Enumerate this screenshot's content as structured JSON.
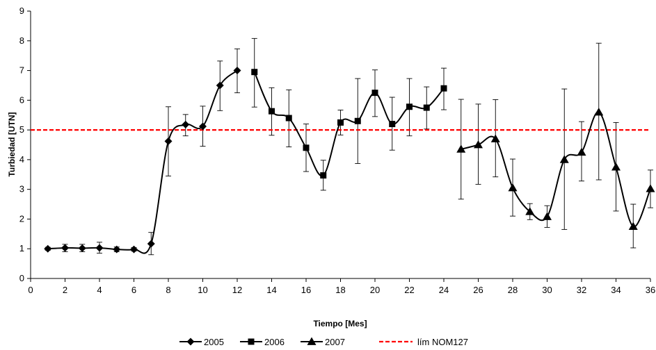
{
  "chart_data": {
    "type": "line",
    "xlabel": "Tiempo [Mes]",
    "ylabel": "Turbiedad [UTN]",
    "xlim": [
      0,
      36
    ],
    "ylim": [
      0,
      9
    ],
    "x_ticks": [
      0,
      2,
      4,
      6,
      8,
      10,
      12,
      14,
      16,
      18,
      20,
      22,
      24,
      26,
      28,
      30,
      32,
      34,
      36
    ],
    "y_ticks": [
      0,
      1,
      2,
      3,
      4,
      5,
      6,
      7,
      8,
      9
    ],
    "grid": false,
    "legend_position": "bottom",
    "series": [
      {
        "name": "2005",
        "marker": "diamond",
        "color": "#000000",
        "points": [
          {
            "x": 1,
            "y": 1.0,
            "err_low": 0.95,
            "err_high": 1.05
          },
          {
            "x": 2,
            "y": 1.03,
            "err_low": 0.9,
            "err_high": 1.15
          },
          {
            "x": 3,
            "y": 1.02,
            "err_low": 0.9,
            "err_high": 1.15
          },
          {
            "x": 4,
            "y": 1.03,
            "err_low": 0.85,
            "err_high": 1.22
          },
          {
            "x": 5,
            "y": 0.98,
            "err_low": 0.9,
            "err_high": 1.06
          },
          {
            "x": 6,
            "y": 0.98,
            "err_low": 0.92,
            "err_high": 1.04
          },
          {
            "x": 7,
            "y": 1.17,
            "err_low": 0.8,
            "err_high": 1.55
          },
          {
            "x": 8,
            "y": 4.62,
            "err_low": 3.45,
            "err_high": 5.78
          },
          {
            "x": 9,
            "y": 5.18,
            "err_low": 4.8,
            "err_high": 5.52
          },
          {
            "x": 10,
            "y": 5.12,
            "err_low": 4.45,
            "err_high": 5.8
          },
          {
            "x": 11,
            "y": 6.5,
            "err_low": 5.65,
            "err_high": 7.32
          },
          {
            "x": 12,
            "y": 7.0,
            "err_low": 6.25,
            "err_high": 7.73
          }
        ]
      },
      {
        "name": "2006",
        "marker": "square",
        "color": "#000000",
        "points": [
          {
            "x": 13,
            "y": 6.95,
            "err_low": 5.77,
            "err_high": 8.08
          },
          {
            "x": 14,
            "y": 5.63,
            "err_low": 4.82,
            "err_high": 6.42
          },
          {
            "x": 15,
            "y": 5.4,
            "err_low": 4.43,
            "err_high": 6.35
          },
          {
            "x": 16,
            "y": 4.4,
            "err_low": 3.6,
            "err_high": 5.2
          },
          {
            "x": 17,
            "y": 3.47,
            "err_low": 2.97,
            "err_high": 3.98
          },
          {
            "x": 18,
            "y": 5.25,
            "err_low": 4.83,
            "err_high": 5.67
          },
          {
            "x": 19,
            "y": 5.3,
            "err_low": 3.87,
            "err_high": 6.73
          },
          {
            "x": 20,
            "y": 6.25,
            "err_low": 5.45,
            "err_high": 7.02
          },
          {
            "x": 21,
            "y": 5.2,
            "err_low": 4.32,
            "err_high": 6.1
          },
          {
            "x": 22,
            "y": 5.78,
            "err_low": 4.8,
            "err_high": 6.73
          },
          {
            "x": 23,
            "y": 5.75,
            "err_low": 5.03,
            "err_high": 6.45
          },
          {
            "x": 24,
            "y": 6.4,
            "err_low": 5.68,
            "err_high": 7.08
          }
        ]
      },
      {
        "name": "2007",
        "marker": "triangle",
        "color": "#000000",
        "points": [
          {
            "x": 25,
            "y": 4.35,
            "err_low": 2.67,
            "err_high": 6.03
          },
          {
            "x": 26,
            "y": 4.5,
            "err_low": 3.17,
            "err_high": 5.87
          },
          {
            "x": 27,
            "y": 4.7,
            "err_low": 3.42,
            "err_high": 6.02
          },
          {
            "x": 28,
            "y": 3.05,
            "err_low": 2.1,
            "err_high": 4.02
          },
          {
            "x": 29,
            "y": 2.25,
            "err_low": 1.98,
            "err_high": 2.52
          },
          {
            "x": 30,
            "y": 2.08,
            "err_low": 1.72,
            "err_high": 2.45
          },
          {
            "x": 31,
            "y": 4.0,
            "err_low": 1.65,
            "err_high": 6.38
          },
          {
            "x": 32,
            "y": 4.25,
            "err_low": 3.28,
            "err_high": 5.28
          },
          {
            "x": 33,
            "y": 5.6,
            "err_low": 3.32,
            "err_high": 7.92
          },
          {
            "x": 34,
            "y": 3.75,
            "err_low": 2.27,
            "err_high": 5.25
          },
          {
            "x": 35,
            "y": 1.75,
            "err_low": 1.03,
            "err_high": 2.5
          },
          {
            "x": 36,
            "y": 3.02,
            "err_low": 2.38,
            "err_high": 3.65
          }
        ]
      }
    ],
    "reference_line": {
      "name": "lím NOM127",
      "y": 5,
      "color": "#ff0000",
      "style": "dashed"
    }
  }
}
